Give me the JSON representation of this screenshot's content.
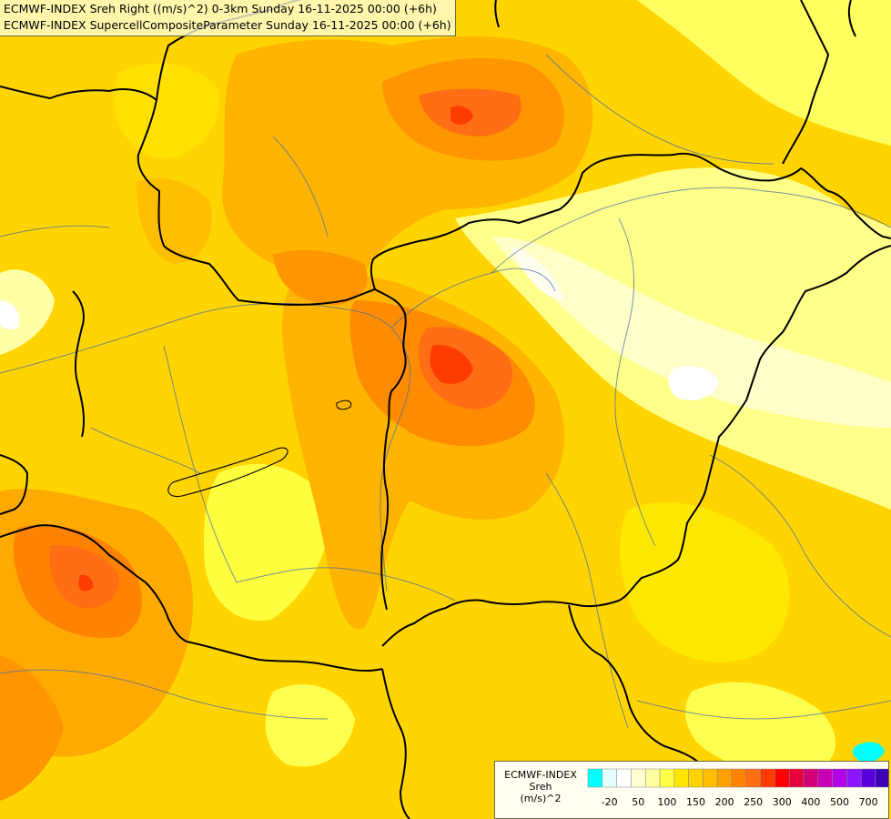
{
  "titles": {
    "line1": "ECMWF-INDEX Sreh Right ((m/s)^2) 0-3km Sunday 16-11-2025 00:00 (+6h)",
    "line2": "ECMWF-INDEX SupercellCompositeParameter Sunday 16-11-2025 00:00 (+6h)"
  },
  "legend": {
    "title_line1": "ECMWF-INDEX",
    "title_line2": "Sreh",
    "title_line3": "(m/s)^2",
    "colors": [
      "#00ffff",
      "#e6ffff",
      "#ffffff",
      "#ffffd2",
      "#ffffa0",
      "#ffff46",
      "#ffe600",
      "#ffd200",
      "#ffbe00",
      "#ffa000",
      "#ff8200",
      "#ff6e14",
      "#ff3c00",
      "#ff0000",
      "#e6003c",
      "#d20078",
      "#c800b4",
      "#b400e6",
      "#8c14ff",
      "#5a00dc",
      "#3c00b4",
      "#000080"
    ],
    "tick_labels": [
      "-20",
      "50",
      "100",
      "150",
      "200",
      "250",
      "300",
      "400",
      "500",
      "700"
    ]
  }
}
